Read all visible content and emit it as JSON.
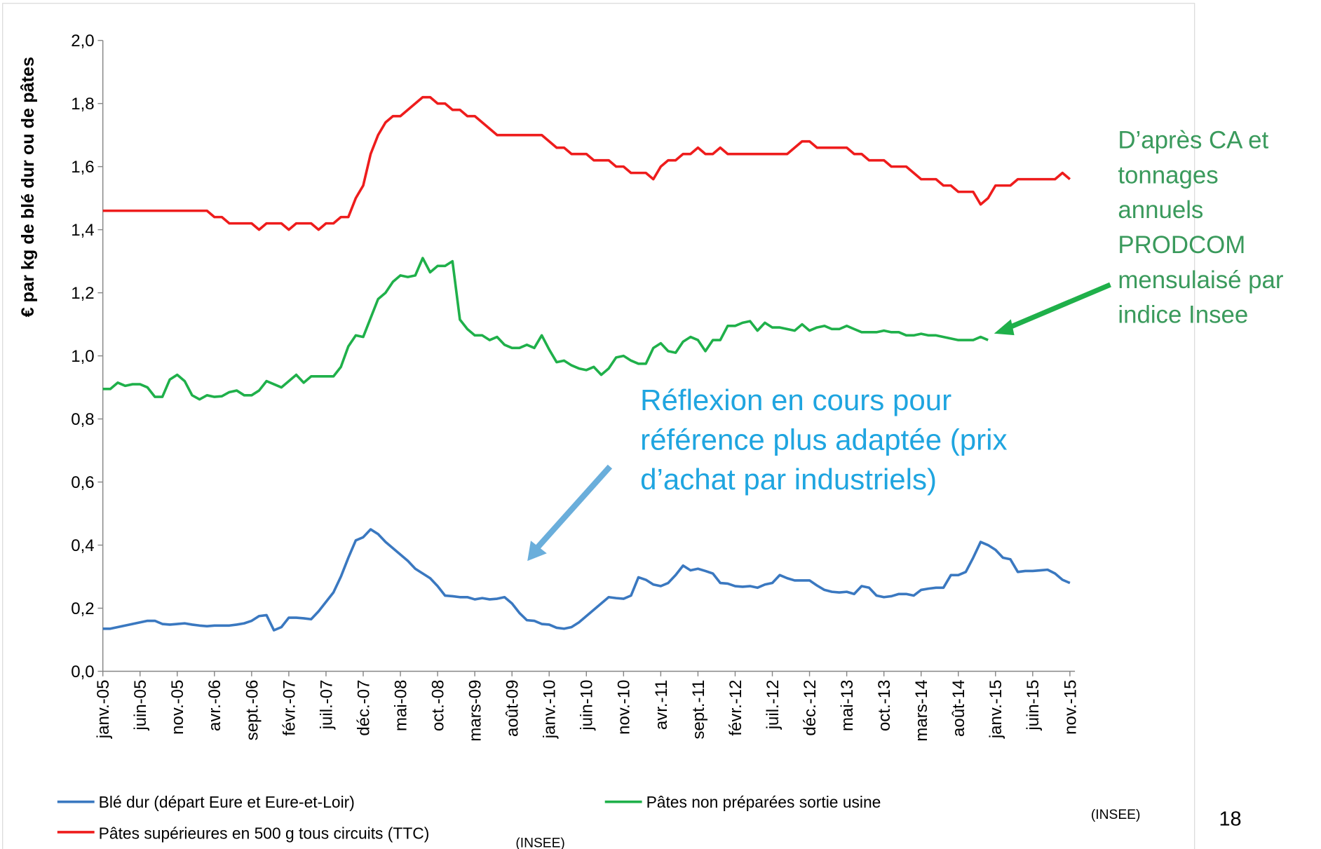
{
  "chart_data": {
    "type": "line",
    "y_label": "€ par kg de blé dur ou de pâtes",
    "categories": [
      "janv.-05",
      null,
      null,
      null,
      null,
      "juin-05",
      null,
      null,
      null,
      null,
      "nov.-05",
      null,
      null,
      null,
      null,
      "avr.-06",
      null,
      null,
      null,
      null,
      "sept.-06",
      null,
      null,
      null,
      null,
      "févr.-07",
      null,
      null,
      null,
      null,
      "juil.-07",
      null,
      null,
      null,
      null,
      "déc.-07",
      null,
      null,
      null,
      null,
      "mai-08",
      null,
      null,
      null,
      null,
      "oct.-08",
      null,
      null,
      null,
      null,
      "mars-09",
      null,
      null,
      null,
      null,
      "août-09",
      null,
      null,
      null,
      null,
      "janv.-10",
      null,
      null,
      null,
      null,
      "juin-10",
      null,
      null,
      null,
      null,
      "nov.-10",
      null,
      null,
      null,
      null,
      "avr.-11",
      null,
      null,
      null,
      null,
      "sept.-11",
      null,
      null,
      null,
      null,
      "févr.-12",
      null,
      null,
      null,
      null,
      "juil.-12",
      null,
      null,
      null,
      null,
      "déc.-12",
      null,
      null,
      null,
      null,
      "mai-13",
      null,
      null,
      null,
      null,
      "oct.-13",
      null,
      null,
      null,
      null,
      "mars-14",
      null,
      null,
      null,
      null,
      "août-14",
      null,
      null,
      null,
      null,
      "janv.-15",
      null,
      null,
      null,
      null,
      "juin-15",
      null,
      null,
      null,
      null,
      "nov.-15"
    ],
    "series": [
      {
        "name": "Blé dur (départ Eure et Eure-et-Loir)",
        "color": "#3a78c0",
        "values": [
          0.135,
          0.135,
          0.14,
          0.145,
          0.15,
          0.155,
          0.16,
          0.16,
          0.15,
          0.148,
          0.15,
          0.152,
          0.148,
          0.145,
          0.143,
          0.145,
          0.145,
          0.145,
          0.148,
          0.152,
          0.16,
          0.175,
          0.178,
          0.13,
          0.14,
          0.17,
          0.17,
          0.168,
          0.165,
          0.19,
          0.22,
          0.25,
          0.3,
          0.36,
          0.415,
          0.425,
          0.45,
          0.435,
          0.41,
          0.39,
          0.37,
          0.35,
          0.325,
          0.31,
          0.295,
          0.27,
          0.24,
          0.238,
          0.235,
          0.235,
          0.228,
          0.232,
          0.228,
          0.23,
          0.235,
          0.215,
          0.185,
          0.162,
          0.16,
          0.15,
          0.148,
          0.138,
          0.135,
          0.14,
          0.155,
          0.175,
          0.195,
          0.215,
          0.235,
          0.232,
          0.23,
          0.24,
          0.298,
          0.29,
          0.275,
          0.27,
          0.28,
          0.305,
          0.335,
          0.32,
          0.325,
          0.318,
          0.31,
          0.28,
          0.278,
          0.27,
          0.268,
          0.27,
          0.265,
          0.275,
          0.28,
          0.305,
          0.295,
          0.288,
          0.288,
          0.288,
          0.272,
          0.258,
          0.252,
          0.25,
          0.252,
          0.245,
          0.27,
          0.265,
          0.24,
          0.235,
          0.238,
          0.245,
          0.245,
          0.24,
          0.258,
          0.262,
          0.265,
          0.265,
          0.305,
          0.305,
          0.315,
          0.36,
          0.41,
          0.4,
          0.385,
          0.36,
          0.355,
          0.315,
          0.318,
          0.318,
          0.32,
          0.322,
          0.31,
          0.29,
          0.28
        ]
      },
      {
        "name": "Pâtes non préparées sortie usine",
        "color": "#1fb04a",
        "values": [
          0.895,
          0.895,
          0.915,
          0.905,
          0.91,
          0.91,
          0.9,
          0.87,
          0.87,
          0.925,
          0.94,
          0.92,
          0.875,
          0.862,
          0.875,
          0.87,
          0.872,
          0.885,
          0.89,
          0.875,
          0.875,
          0.89,
          0.92,
          0.91,
          0.9,
          0.92,
          0.94,
          0.915,
          0.935,
          0.935,
          0.935,
          0.935,
          0.965,
          1.03,
          1.065,
          1.06,
          1.12,
          1.18,
          1.2,
          1.235,
          1.255,
          1.25,
          1.255,
          1.31,
          1.265,
          1.285,
          1.285,
          1.3,
          1.115,
          1.085,
          1.065,
          1.065,
          1.05,
          1.06,
          1.035,
          1.025,
          1.025,
          1.035,
          1.025,
          1.065,
          1.02,
          0.98,
          0.985,
          0.97,
          0.96,
          0.955,
          0.965,
          0.94,
          0.96,
          0.995,
          1.0,
          0.985,
          0.975,
          0.975,
          1.025,
          1.04,
          1.015,
          1.01,
          1.045,
          1.06,
          1.05,
          1.015,
          1.05,
          1.05,
          1.095,
          1.095,
          1.105,
          1.11,
          1.08,
          1.105,
          1.09,
          1.09,
          1.085,
          1.08,
          1.1,
          1.08,
          1.09,
          1.095,
          1.085,
          1.085,
          1.095,
          1.085,
          1.075,
          1.075,
          1.075,
          1.08,
          1.075,
          1.075,
          1.065,
          1.065,
          1.07,
          1.065,
          1.065,
          1.06,
          1.055,
          1.05,
          1.05,
          1.05,
          1.06,
          1.05,
          null,
          null,
          null,
          null,
          null,
          null,
          null,
          null,
          null,
          null,
          null
        ]
      },
      {
        "name": "Pâtes supérieures en 500 g tous circuits (TTC)",
        "color": "#ee1c1c",
        "values": [
          1.46,
          1.46,
          1.46,
          1.46,
          1.46,
          1.46,
          1.46,
          1.46,
          1.46,
          1.46,
          1.46,
          1.46,
          1.46,
          1.46,
          1.46,
          1.44,
          1.44,
          1.42,
          1.42,
          1.42,
          1.42,
          1.4,
          1.42,
          1.42,
          1.42,
          1.4,
          1.42,
          1.42,
          1.42,
          1.4,
          1.42,
          1.42,
          1.44,
          1.44,
          1.5,
          1.54,
          1.64,
          1.7,
          1.74,
          1.76,
          1.76,
          1.78,
          1.8,
          1.82,
          1.82,
          1.8,
          1.8,
          1.78,
          1.78,
          1.76,
          1.76,
          1.74,
          1.72,
          1.7,
          1.7,
          1.7,
          1.7,
          1.7,
          1.7,
          1.7,
          1.68,
          1.66,
          1.66,
          1.64,
          1.64,
          1.64,
          1.62,
          1.62,
          1.62,
          1.6,
          1.6,
          1.58,
          1.58,
          1.58,
          1.56,
          1.6,
          1.62,
          1.62,
          1.64,
          1.64,
          1.66,
          1.64,
          1.64,
          1.66,
          1.64,
          1.64,
          1.64,
          1.64,
          1.64,
          1.64,
          1.64,
          1.64,
          1.64,
          1.66,
          1.68,
          1.68,
          1.66,
          1.66,
          1.66,
          1.66,
          1.66,
          1.64,
          1.64,
          1.62,
          1.62,
          1.62,
          1.6,
          1.6,
          1.6,
          1.58,
          1.56,
          1.56,
          1.56,
          1.54,
          1.54,
          1.52,
          1.52,
          1.52,
          1.48,
          1.5,
          1.54,
          1.54,
          1.54,
          1.56,
          1.56,
          1.56,
          1.56,
          1.56,
          1.56,
          1.58,
          1.56
        ]
      }
    ],
    "ylim": [
      0,
      2
    ],
    "yticks": [
      {
        "value": 0,
        "label": "0,0"
      },
      {
        "value": 0.2,
        "label": "0,2"
      },
      {
        "value": 0.4,
        "label": "0,4"
      },
      {
        "value": 0.6,
        "label": "0,6"
      },
      {
        "value": 0.8,
        "label": "0,8"
      },
      {
        "value": 1,
        "label": "1,0"
      },
      {
        "value": 1.2,
        "label": "1,2"
      },
      {
        "value": 1.4,
        "label": "1,4"
      },
      {
        "value": 1.6,
        "label": "1,6"
      },
      {
        "value": 1.8,
        "label": "1,8"
      },
      {
        "value": 2,
        "label": "2,0"
      }
    ],
    "grid": false,
    "annotations": [
      {
        "lines": [
          "D’après CA et",
          "tonnages",
          "annuels",
          "PRODCOM",
          "mensulaisé par",
          "indice Insee"
        ],
        "color": "#3a9a5c"
      },
      {
        "lines": [
          "Réflexion en cours pour",
          "référence plus adaptée (prix",
          "d’achat par industriels)"
        ],
        "color": "#1fa5e0"
      }
    ],
    "sources": [
      "(INSEE)",
      "(INSEE)"
    ],
    "page_number": "18"
  }
}
